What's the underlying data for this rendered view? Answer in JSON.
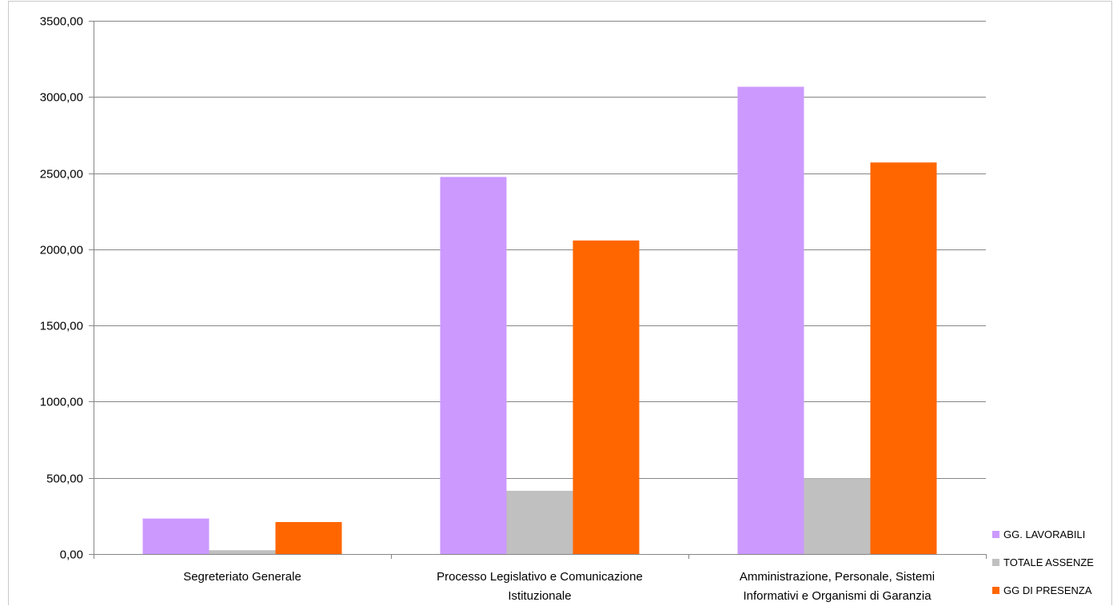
{
  "chart_data": {
    "type": "bar",
    "title": "",
    "xlabel": "",
    "ylabel": "",
    "ylim": [
      0,
      3500
    ],
    "ytick_step": 500,
    "ytick_labels": [
      "0,00",
      "500,00",
      "1000,00",
      "1500,00",
      "2000,00",
      "2500,00",
      "3000,00",
      "3500,00"
    ],
    "grid": true,
    "legend_position": "bottom-right",
    "categories": [
      [
        "Segreteriato Generale"
      ],
      [
        "Processo Legislativo e Comunicazione",
        "Istituzionale"
      ],
      [
        "Amministrazione, Personale, Sistemi",
        "Informativi e Organismi di Garanzia"
      ]
    ],
    "series": [
      {
        "name": "GG. LAVORABILI",
        "color": "#cc99ff",
        "values": [
          233,
          2475,
          3067
        ]
      },
      {
        "name": "TOTALE ASSENZE",
        "color": "#c0c0c0",
        "values": [
          25,
          415,
          497
        ]
      },
      {
        "name": "GG DI PRESENZA",
        "color": "#ff6600",
        "values": [
          210,
          2058,
          2570
        ]
      }
    ]
  }
}
